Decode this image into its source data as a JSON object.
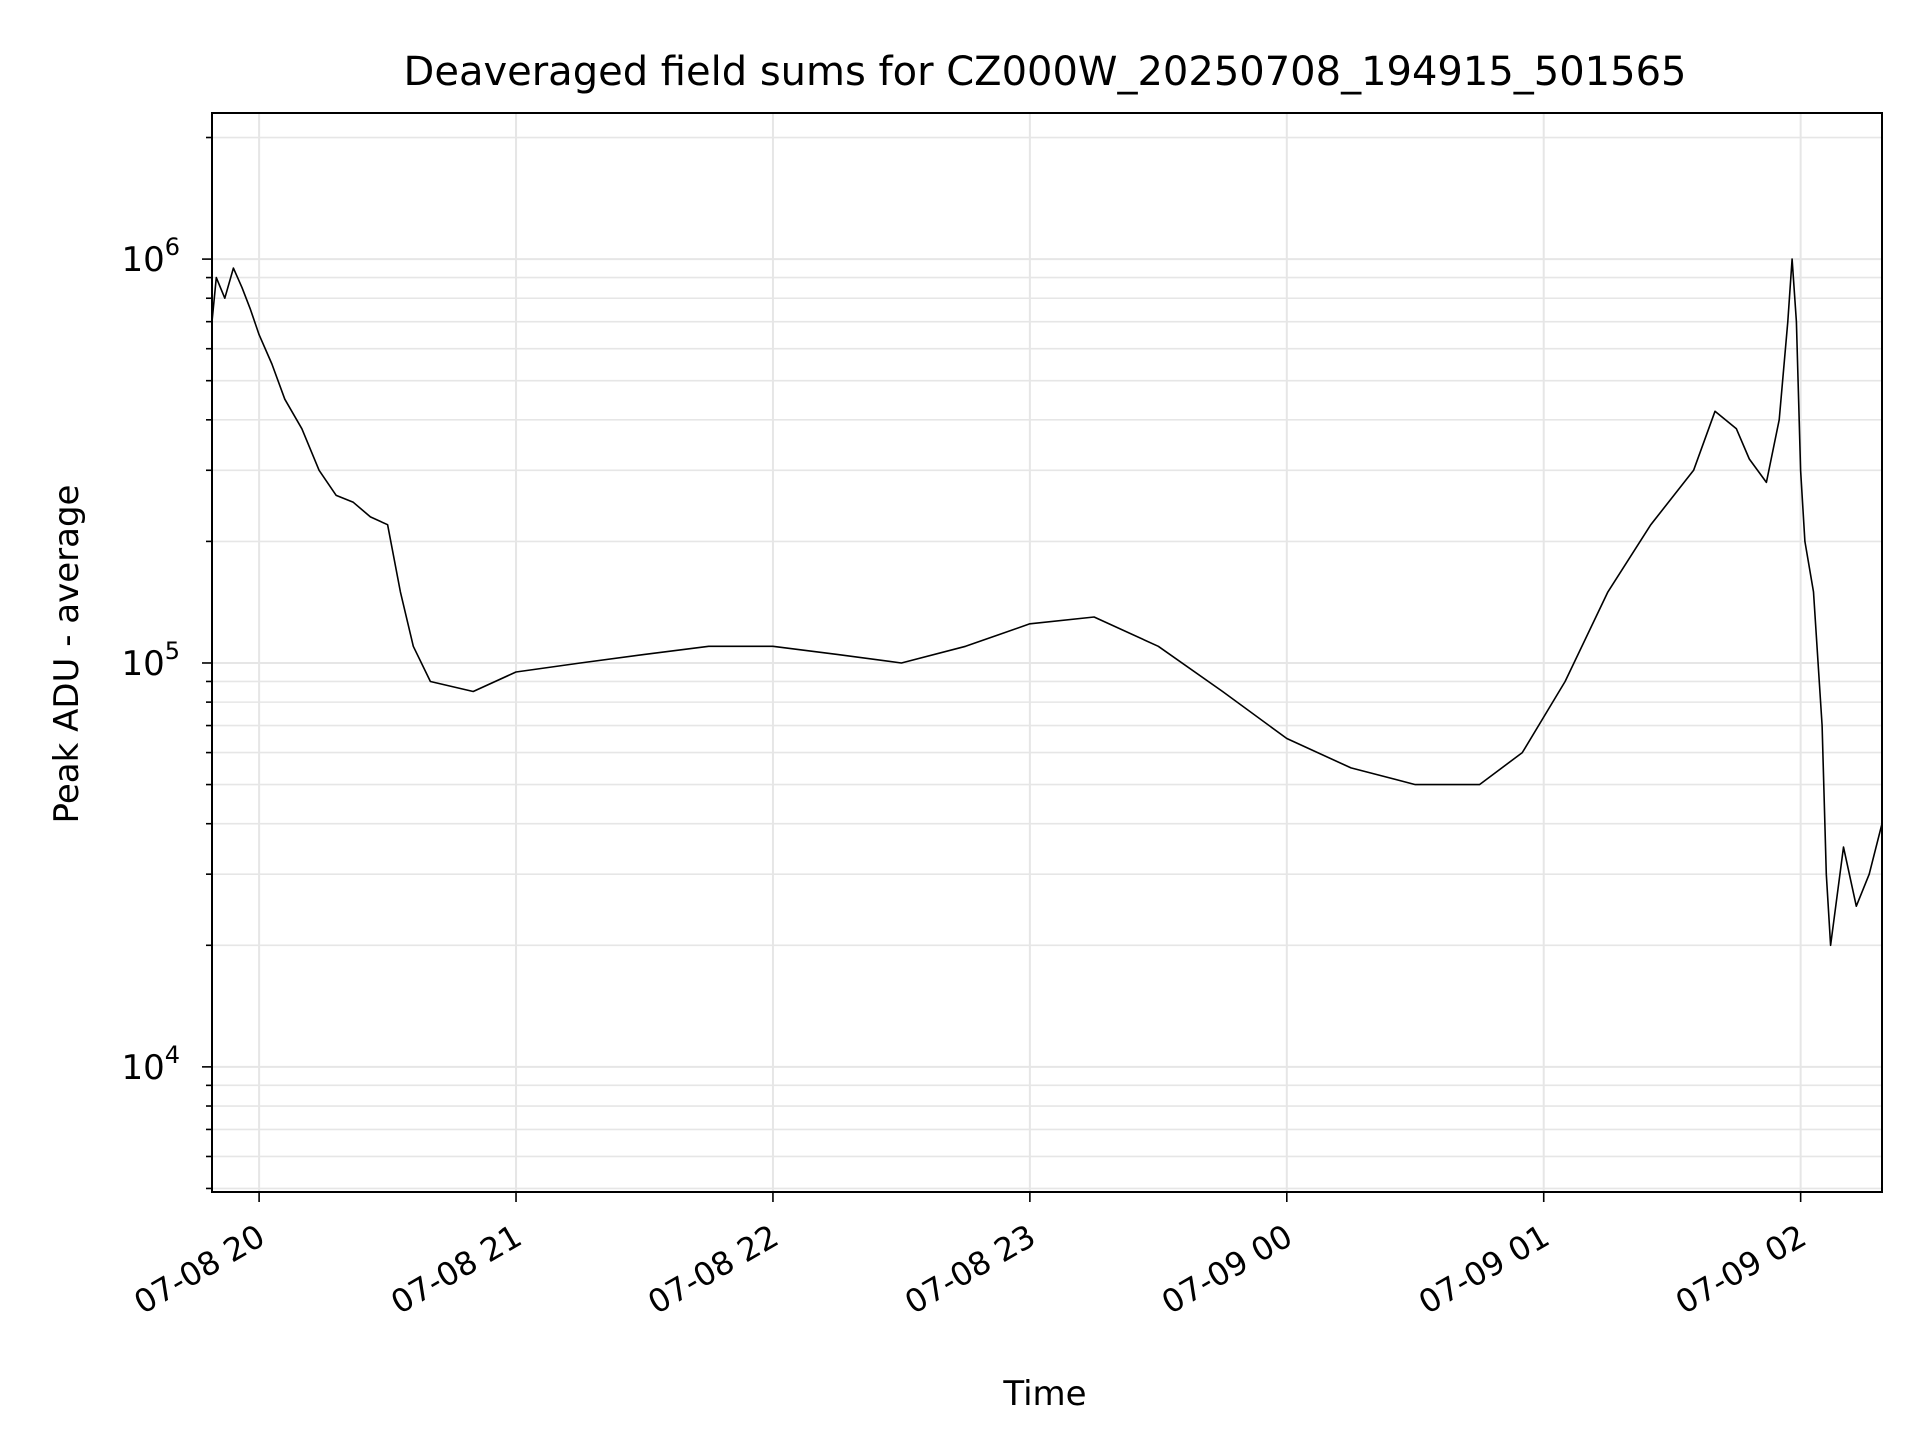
{
  "chart_data": {
    "type": "line",
    "title": "Deaveraged field sums for CZ000W_20250708_194915_501565",
    "xlabel": "Time",
    "ylabel": "Peak ADU - average",
    "y_scale": "log",
    "grid": true,
    "line_color": "#000000",
    "grid_color": "#e6e6e6",
    "xlim": [
      "2025-07-08 19:49",
      "2025-07-09 02:19"
    ],
    "ylim": [
      4900,
      2300000
    ],
    "x_ticks": [
      {
        "value": "2025-07-08 20:00",
        "label": "07-08 20"
      },
      {
        "value": "2025-07-08 21:00",
        "label": "07-08 21"
      },
      {
        "value": "2025-07-08 22:00",
        "label": "07-08 22"
      },
      {
        "value": "2025-07-08 23:00",
        "label": "07-08 23"
      },
      {
        "value": "2025-07-09 00:00",
        "label": "07-09 00"
      },
      {
        "value": "2025-07-09 01:00",
        "label": "07-09 01"
      },
      {
        "value": "2025-07-09 02:00",
        "label": "07-09 02"
      }
    ],
    "y_ticks": [
      {
        "value": 10000,
        "base": "10",
        "exp": "4"
      },
      {
        "value": 100000,
        "base": "10",
        "exp": "5"
      },
      {
        "value": 1000000,
        "base": "10",
        "exp": "6"
      }
    ],
    "series": [
      {
        "points": [
          [
            "2025-07-08 19:49",
            700000
          ],
          [
            "2025-07-08 19:50",
            900000
          ],
          [
            "2025-07-08 19:52",
            800000
          ],
          [
            "2025-07-08 19:54",
            950000
          ],
          [
            "2025-07-08 19:56",
            850000
          ],
          [
            "2025-07-08 19:58",
            750000
          ],
          [
            "2025-07-08 20:00",
            650000
          ],
          [
            "2025-07-08 20:03",
            550000
          ],
          [
            "2025-07-08 20:06",
            450000
          ],
          [
            "2025-07-08 20:10",
            380000
          ],
          [
            "2025-07-08 20:14",
            300000
          ],
          [
            "2025-07-08 20:18",
            260000
          ],
          [
            "2025-07-08 20:22",
            250000
          ],
          [
            "2025-07-08 20:26",
            230000
          ],
          [
            "2025-07-08 20:30",
            220000
          ],
          [
            "2025-07-08 20:33",
            150000
          ],
          [
            "2025-07-08 20:36",
            110000
          ],
          [
            "2025-07-08 20:40",
            90000
          ],
          [
            "2025-07-08 20:50",
            85000
          ],
          [
            "2025-07-08 21:00",
            95000
          ],
          [
            "2025-07-08 21:15",
            100000
          ],
          [
            "2025-07-08 21:30",
            105000
          ],
          [
            "2025-07-08 21:45",
            110000
          ],
          [
            "2025-07-08 22:00",
            110000
          ],
          [
            "2025-07-08 22:15",
            105000
          ],
          [
            "2025-07-08 22:30",
            100000
          ],
          [
            "2025-07-08 22:45",
            110000
          ],
          [
            "2025-07-08 23:00",
            125000
          ],
          [
            "2025-07-08 23:15",
            130000
          ],
          [
            "2025-07-08 23:30",
            110000
          ],
          [
            "2025-07-08 23:45",
            85000
          ],
          [
            "2025-07-09 00:00",
            65000
          ],
          [
            "2025-07-09 00:15",
            55000
          ],
          [
            "2025-07-09 00:30",
            50000
          ],
          [
            "2025-07-09 00:45",
            50000
          ],
          [
            "2025-07-09 00:55",
            60000
          ],
          [
            "2025-07-09 01:05",
            90000
          ],
          [
            "2025-07-09 01:15",
            150000
          ],
          [
            "2025-07-09 01:25",
            220000
          ],
          [
            "2025-07-09 01:35",
            300000
          ],
          [
            "2025-07-09 01:40",
            420000
          ],
          [
            "2025-07-09 01:45",
            380000
          ],
          [
            "2025-07-09 01:48",
            320000
          ],
          [
            "2025-07-09 01:52",
            280000
          ],
          [
            "2025-07-09 01:55",
            400000
          ],
          [
            "2025-07-09 01:57",
            700000
          ],
          [
            "2025-07-09 01:58",
            1000000
          ],
          [
            "2025-07-09 01:59",
            700000
          ],
          [
            "2025-07-09 02:00",
            300000
          ],
          [
            "2025-07-09 02:01",
            200000
          ],
          [
            "2025-07-09 02:03",
            150000
          ],
          [
            "2025-07-09 02:05",
            70000
          ],
          [
            "2025-07-09 02:06",
            30000
          ],
          [
            "2025-07-09 02:07",
            20000
          ],
          [
            "2025-07-09 02:10",
            35000
          ],
          [
            "2025-07-09 02:13",
            25000
          ],
          [
            "2025-07-09 02:16",
            30000
          ],
          [
            "2025-07-09 02:19",
            40000
          ]
        ]
      }
    ]
  }
}
